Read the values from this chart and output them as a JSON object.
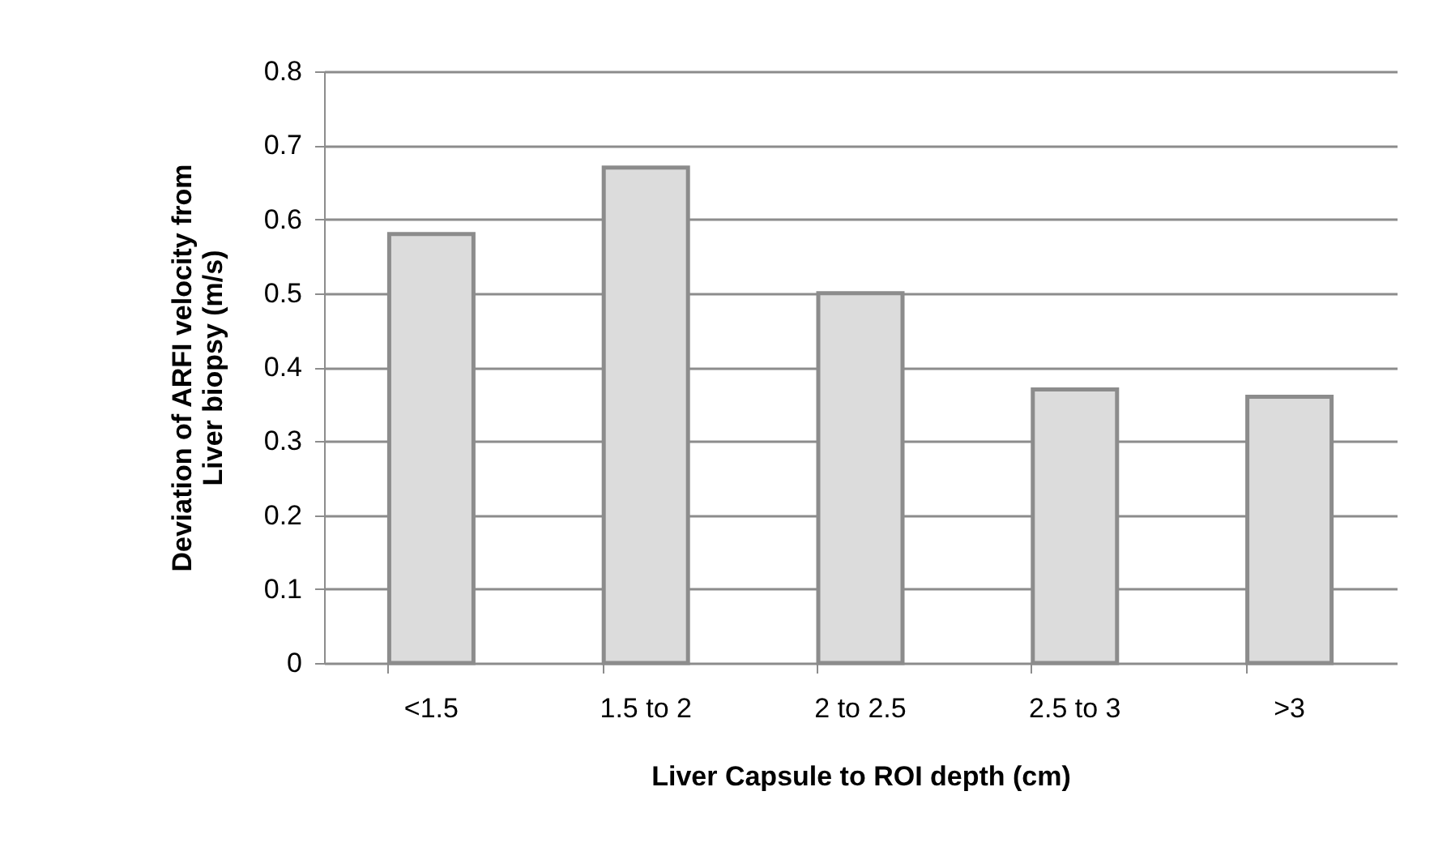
{
  "chart_data": {
    "type": "bar",
    "xlabel": "Liver Capsule to ROI depth (cm)",
    "ylabel": "Deviation of ARFI velocity from Liver biopsy (m/s)",
    "categories": [
      "<1.5",
      "1.5 to 2",
      "2 to 2.5",
      "2.5 to 3",
      ">3"
    ],
    "values": [
      0.58,
      0.67,
      0.5,
      0.37,
      0.36
    ],
    "color": "#dcdcdc",
    "ylim": [
      0,
      0.8
    ],
    "yticks": [
      0,
      0.1,
      0.2,
      0.3,
      0.4,
      0.5,
      0.6,
      0.7,
      0.8
    ],
    "grid": "y"
  }
}
